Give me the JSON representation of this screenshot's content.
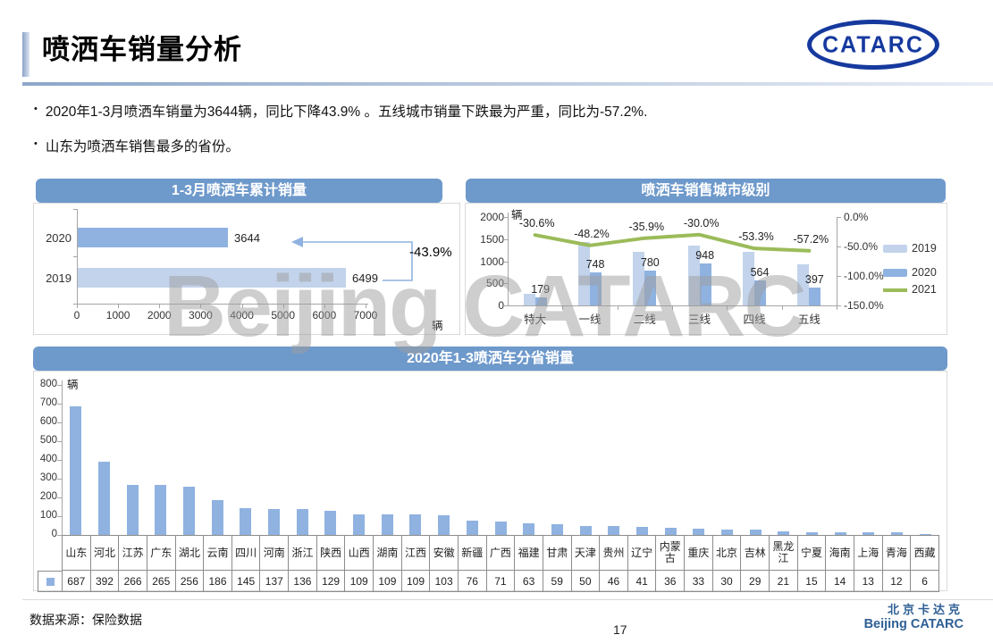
{
  "slide": {
    "title": "喷洒车销量分析",
    "bullet_char": "•",
    "bullets": [
      "2020年1-3月喷洒车销量为3644辆，同比下降43.9% 。五线城市销量下跌最为严重，同比为-57.2%.",
      "山东为喷洒车销售最多的省份。"
    ],
    "logo_text": "CATARC",
    "watermark": "Beijing CATARC",
    "footer": {
      "source": "数据来源：保险数据",
      "page": "17",
      "brand_cn": "北京卡达克",
      "brand_en": "Beijing CATARC"
    }
  },
  "colors": {
    "header_bar": "#6E99CB",
    "bar_2020": "#8FB2E0",
    "bar_2019": "#C2D3EB",
    "line_2021": "#9BBB59",
    "axis_gray": "#A6A6A6",
    "grid_border": "#8C8C8C",
    "label_dark": "#222222"
  },
  "chart_data": [
    {
      "type": "bar",
      "orientation": "horizontal",
      "title": "1-3月喷洒车累计销量",
      "categories": [
        "2020",
        "2019"
      ],
      "values": [
        3644,
        6499
      ],
      "xlim": [
        0,
        7000
      ],
      "xticks": [
        0,
        1000,
        2000,
        3000,
        4000,
        5000,
        6000,
        7000
      ],
      "unit": "辆",
      "annotation": "-43.9%",
      "legend_position": "none",
      "grid": false
    },
    {
      "type": "bar+line",
      "title": "喷洒车销售城市级别",
      "categories": [
        "特大",
        "一线",
        "二线",
        "三线",
        "四线",
        "五线"
      ],
      "series": [
        {
          "name": "2019",
          "type": "bar",
          "values": [
            258,
            1444,
            1217,
            1354,
            1208,
            928
          ]
        },
        {
          "name": "2020",
          "type": "bar",
          "values": [
            179,
            748,
            780,
            948,
            564,
            397
          ]
        },
        {
          "name": "2021",
          "type": "line",
          "axis": "right",
          "values_pct": [
            -30.6,
            -48.2,
            -35.9,
            -30.0,
            -53.3,
            -57.2
          ],
          "labels": [
            "-30.6%",
            "-48.2%",
            "-35.9%",
            "-30.0%",
            "-53.3%",
            "-57.2%"
          ]
        }
      ],
      "left_axis": {
        "unit": "辆",
        "ticks": [
          2000,
          1500,
          1000,
          500,
          0
        ],
        "ylim": [
          0,
          2000
        ]
      },
      "right_axis": {
        "ticks": [
          "0.0%",
          "-50.0%",
          "-100.0%",
          "-150.0%"
        ],
        "ylim": [
          -150,
          0
        ]
      },
      "legend_position": "right",
      "grid": false
    },
    {
      "type": "bar",
      "title": "2020年1-3喷洒车分省销量",
      "unit": "辆",
      "categories": [
        "山东",
        "河北",
        "江苏",
        "广东",
        "湖北",
        "云南",
        "四川",
        "河南",
        "浙江",
        "陕西",
        "山西",
        "湖南",
        "江西",
        "安徽",
        "新疆",
        "广西",
        "福建",
        "甘肃",
        "天津",
        "贵州",
        "辽宁",
        "内蒙古",
        "重庆",
        "北京",
        "吉林",
        "黑龙江",
        "宁夏",
        "海南",
        "上海",
        "青海",
        "西藏"
      ],
      "values": [
        687,
        392,
        266,
        265,
        256,
        186,
        145,
        137,
        136,
        129,
        109,
        109,
        109,
        103,
        76,
        71,
        63,
        59,
        50,
        46,
        41,
        36,
        33,
        30,
        29,
        21,
        15,
        14,
        13,
        12,
        6
      ],
      "yticks": [
        800,
        700,
        600,
        500,
        400,
        300,
        200,
        100,
        0
      ],
      "ylim": [
        0,
        800
      ],
      "data_table": true,
      "grid": false
    }
  ]
}
